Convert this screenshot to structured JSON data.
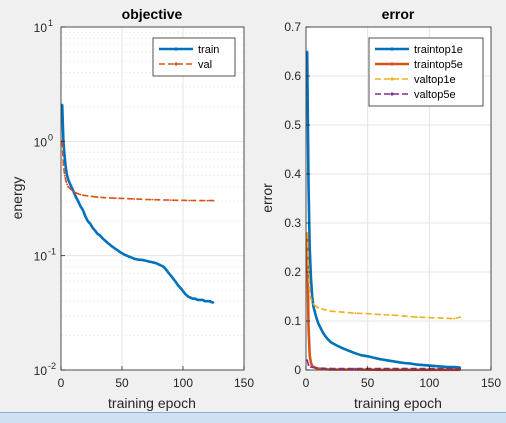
{
  "window": {
    "background": "#f0f0f0"
  },
  "chart_data": [
    {
      "type": "line",
      "title": "objective",
      "xlabel": "training epoch",
      "ylabel": "energy",
      "xlim": [
        0,
        150
      ],
      "ylim": [
        0.01,
        10
      ],
      "yscale": "log",
      "grid": true,
      "minor_grid": true,
      "legend_position": "top-right",
      "x_ticks": [
        "0",
        "50",
        "100",
        "150"
      ],
      "y_ticks": [
        {
          "base": "10",
          "exp": "1",
          "value": 10
        },
        {
          "base": "10",
          "exp": "0",
          "value": 1
        },
        {
          "base": "10",
          "exp": "-1",
          "value": 0.1
        },
        {
          "base": "10",
          "exp": "-2",
          "value": 0.01
        }
      ],
      "series": [
        {
          "name": "train",
          "color": "#0072bd",
          "style": "solid",
          "marker": "point",
          "points": [
            [
              1,
              2.1
            ],
            [
              2,
              1.0
            ],
            [
              3,
              0.72
            ],
            [
              4,
              0.58
            ],
            [
              5,
              0.5
            ],
            [
              6,
              0.46
            ],
            [
              8,
              0.41
            ],
            [
              10,
              0.37
            ],
            [
              12,
              0.33
            ],
            [
              14,
              0.3
            ],
            [
              16,
              0.27
            ],
            [
              18,
              0.25
            ],
            [
              20,
              0.22
            ],
            [
              22,
              0.2
            ],
            [
              24,
              0.19
            ],
            [
              26,
              0.175
            ],
            [
              28,
              0.165
            ],
            [
              30,
              0.155
            ],
            [
              32,
              0.15
            ],
            [
              34,
              0.142
            ],
            [
              36,
              0.136
            ],
            [
              38,
              0.13
            ],
            [
              40,
              0.125
            ],
            [
              42,
              0.12
            ],
            [
              44,
              0.116
            ],
            [
              46,
              0.112
            ],
            [
              48,
              0.108
            ],
            [
              50,
              0.105
            ],
            [
              52,
              0.102
            ],
            [
              54,
              0.1
            ],
            [
              56,
              0.098
            ],
            [
              58,
              0.096
            ],
            [
              60,
              0.094
            ],
            [
              62,
              0.093
            ],
            [
              64,
              0.092
            ],
            [
              66,
              0.092
            ],
            [
              68,
              0.091
            ],
            [
              70,
              0.09
            ],
            [
              72,
              0.089
            ],
            [
              74,
              0.088
            ],
            [
              76,
              0.087
            ],
            [
              78,
              0.086
            ],
            [
              80,
              0.084
            ],
            [
              82,
              0.082
            ],
            [
              84,
              0.08
            ],
            [
              86,
              0.076
            ],
            [
              88,
              0.071
            ],
            [
              90,
              0.067
            ],
            [
              92,
              0.063
            ],
            [
              94,
              0.059
            ],
            [
              96,
              0.055
            ],
            [
              98,
              0.052
            ],
            [
              100,
              0.049
            ],
            [
              102,
              0.046
            ],
            [
              104,
              0.044
            ],
            [
              106,
              0.043
            ],
            [
              108,
              0.042
            ],
            [
              110,
              0.042
            ],
            [
              112,
              0.041
            ],
            [
              114,
              0.041
            ],
            [
              116,
              0.041
            ],
            [
              118,
              0.04
            ],
            [
              120,
              0.04
            ],
            [
              122,
              0.04
            ],
            [
              124,
              0.039
            ],
            [
              125,
              0.039
            ]
          ]
        },
        {
          "name": "val",
          "color": "#d95319",
          "style": "dashed",
          "marker": "point",
          "points": [
            [
              1,
              1.0
            ],
            [
              2,
              0.62
            ],
            [
              3,
              0.5
            ],
            [
              4,
              0.45
            ],
            [
              5,
              0.42
            ],
            [
              6,
              0.4
            ],
            [
              8,
              0.38
            ],
            [
              10,
              0.365
            ],
            [
              12,
              0.355
            ],
            [
              14,
              0.348
            ],
            [
              16,
              0.342
            ],
            [
              18,
              0.338
            ],
            [
              20,
              0.335
            ],
            [
              25,
              0.33
            ],
            [
              30,
              0.325
            ],
            [
              35,
              0.322
            ],
            [
              40,
              0.32
            ],
            [
              45,
              0.318
            ],
            [
              50,
              0.317
            ],
            [
              55,
              0.315
            ],
            [
              60,
              0.313
            ],
            [
              65,
              0.312
            ],
            [
              70,
              0.31
            ],
            [
              75,
              0.309
            ],
            [
              80,
              0.308
            ],
            [
              85,
              0.307
            ],
            [
              90,
              0.306
            ],
            [
              95,
              0.305
            ],
            [
              100,
              0.305
            ],
            [
              105,
              0.304
            ],
            [
              110,
              0.304
            ],
            [
              115,
              0.303
            ],
            [
              120,
              0.303
            ],
            [
              125,
              0.303
            ]
          ]
        }
      ]
    },
    {
      "type": "line",
      "title": "error",
      "xlabel": "training epoch",
      "ylabel": "error",
      "xlim": [
        0,
        150
      ],
      "ylim": [
        0,
        0.7
      ],
      "grid": true,
      "legend_position": "top-right",
      "x_ticks": [
        "0",
        "50",
        "100",
        "150"
      ],
      "y_ticks": [
        "0",
        "0.1",
        "0.2",
        "0.3",
        "0.4",
        "0.5",
        "0.6",
        "0.7"
      ],
      "series": [
        {
          "name": "traintop1e",
          "color": "#0072bd",
          "style": "solid",
          "marker": "point",
          "points": [
            [
              1,
              0.65
            ],
            [
              2,
              0.38
            ],
            [
              3,
              0.25
            ],
            [
              4,
              0.19
            ],
            [
              5,
              0.15
            ],
            [
              6,
              0.13
            ],
            [
              8,
              0.11
            ],
            [
              10,
              0.095
            ],
            [
              12,
              0.085
            ],
            [
              14,
              0.075
            ],
            [
              16,
              0.068
            ],
            [
              18,
              0.062
            ],
            [
              20,
              0.057
            ],
            [
              25,
              0.05
            ],
            [
              30,
              0.044
            ],
            [
              35,
              0.039
            ],
            [
              40,
              0.034
            ],
            [
              45,
              0.03
            ],
            [
              50,
              0.028
            ],
            [
              55,
              0.025
            ],
            [
              60,
              0.022
            ],
            [
              65,
              0.02
            ],
            [
              70,
              0.018
            ],
            [
              75,
              0.016
            ],
            [
              80,
              0.014
            ],
            [
              85,
              0.013
            ],
            [
              90,
              0.011
            ],
            [
              95,
              0.01
            ],
            [
              100,
              0.009
            ],
            [
              105,
              0.008
            ],
            [
              110,
              0.007
            ],
            [
              115,
              0.006
            ],
            [
              120,
              0.006
            ],
            [
              125,
              0.005
            ]
          ]
        },
        {
          "name": "traintop5e",
          "color": "#d95319",
          "style": "solid",
          "marker": "point",
          "points": [
            [
              1,
              0.28
            ],
            [
              2,
              0.09
            ],
            [
              3,
              0.03
            ],
            [
              4,
              0.015
            ],
            [
              5,
              0.008
            ],
            [
              8,
              0.004
            ],
            [
              12,
              0.002
            ],
            [
              20,
              0.001
            ],
            [
              40,
              0.001
            ],
            [
              60,
              0.0005
            ],
            [
              80,
              0.0005
            ],
            [
              100,
              0.0005
            ],
            [
              125,
              0.0005
            ]
          ]
        },
        {
          "name": "valtop1e",
          "color": "#edb120",
          "style": "dashed",
          "marker": "point",
          "points": [
            [
              1,
              0.28
            ],
            [
              2,
              0.2
            ],
            [
              3,
              0.16
            ],
            [
              4,
              0.145
            ],
            [
              6,
              0.135
            ],
            [
              8,
              0.13
            ],
            [
              10,
              0.127
            ],
            [
              15,
              0.123
            ],
            [
              20,
              0.12
            ],
            [
              30,
              0.118
            ],
            [
              40,
              0.116
            ],
            [
              50,
              0.115
            ],
            [
              60,
              0.113
            ],
            [
              70,
              0.112
            ],
            [
              80,
              0.11
            ],
            [
              90,
              0.108
            ],
            [
              100,
              0.107
            ],
            [
              110,
              0.106
            ],
            [
              120,
              0.105
            ],
            [
              125,
              0.108
            ]
          ]
        },
        {
          "name": "valtop5e",
          "color": "#7e2f8e",
          "style": "dashed",
          "marker": "point",
          "points": [
            [
              1,
              0.02
            ],
            [
              2,
              0.01
            ],
            [
              4,
              0.006
            ],
            [
              8,
              0.004
            ],
            [
              20,
              0.003
            ],
            [
              40,
              0.003
            ],
            [
              60,
              0.003
            ],
            [
              80,
              0.003
            ],
            [
              100,
              0.003
            ],
            [
              125,
              0.003
            ]
          ]
        }
      ]
    }
  ]
}
